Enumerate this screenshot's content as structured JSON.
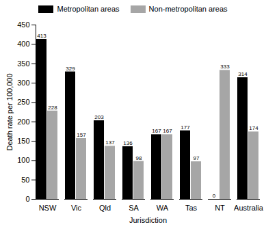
{
  "chart_data": {
    "type": "bar",
    "x_label": "Jurisdiction",
    "y_label": "Death rate per 100,000",
    "categories": [
      "NSW",
      "Vic",
      "Qld",
      "SA",
      "WA",
      "Tas",
      "NT",
      "Australia"
    ],
    "series": [
      {
        "name": "Metropolitan areas",
        "color": "#000000",
        "values": [
          413,
          329,
          203,
          136,
          167,
          177,
          0,
          314
        ]
      },
      {
        "name": "Non-metropolitan areas",
        "color": "#a6a6a6",
        "values": [
          228,
          157,
          137,
          98,
          167,
          97,
          333,
          174
        ]
      }
    ],
    "ylim": [
      0,
      450
    ],
    "yticks": [
      0,
      50,
      100,
      150,
      200,
      250,
      300,
      350,
      400,
      450
    ],
    "grid": false,
    "legend": "top",
    "data_labels": true
  }
}
